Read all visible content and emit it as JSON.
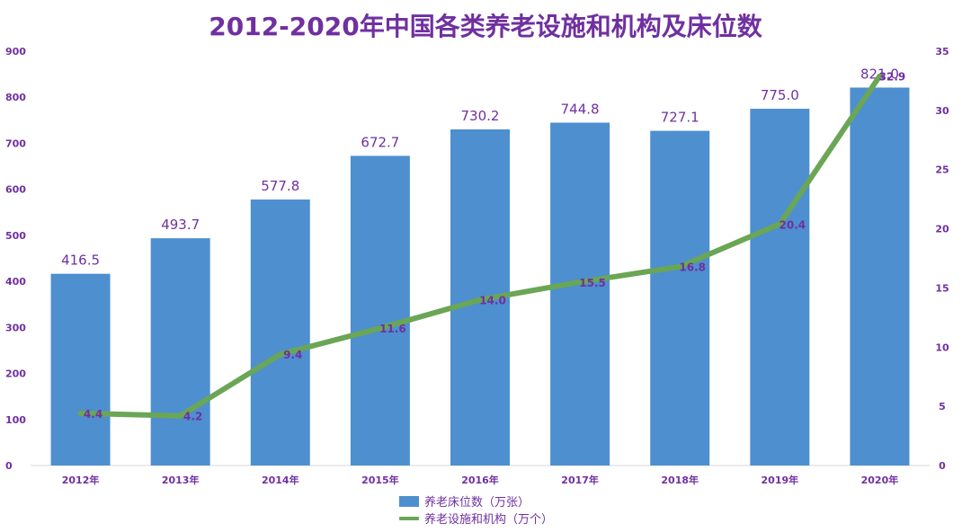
{
  "title": "2012-2020年中国各类养老设施和机构及床位数",
  "colors": {
    "title": "#7030A0",
    "bar": "#4E8FCF",
    "line": "#6AA655",
    "axis_text": "#7030A0",
    "bar_label": "#7030A0",
    "line_label": "#7030A0",
    "axis_line": "#D9D9D9"
  },
  "legend": {
    "bar_label": "养老床位数（万张）",
    "line_label": "养老设施和机构（万个）"
  },
  "chart_data": {
    "type": "bar",
    "categories": [
      "2012年",
      "2013年",
      "2014年",
      "2015年",
      "2016年",
      "2017年",
      "2018年",
      "2019年",
      "2020年"
    ],
    "series": [
      {
        "name": "养老床位数（万张）",
        "type": "bar",
        "axis": "left",
        "values": [
          416.5,
          493.7,
          577.8,
          672.7,
          730.2,
          744.8,
          727.1,
          775.0,
          821.0
        ],
        "labels": [
          "416.5",
          "493.7",
          "577.8",
          "672.7",
          "730.2",
          "744.8",
          "727.1",
          "775.0",
          "821.0"
        ]
      },
      {
        "name": "养老设施和机构（万个）",
        "type": "line",
        "axis": "right",
        "values": [
          4.4,
          4.2,
          9.4,
          11.6,
          14.0,
          15.5,
          16.8,
          20.4,
          32.9
        ],
        "labels": [
          "4.4",
          "4.2",
          "9.4",
          "11.6",
          "14.0",
          "15.5",
          "16.8",
          "20.4",
          "32.9"
        ]
      }
    ],
    "left_axis": {
      "ylim": [
        0,
        900
      ],
      "ticks": [
        "0",
        "100",
        "200",
        "300",
        "400",
        "500",
        "600",
        "700",
        "800",
        "900"
      ],
      "tick_values": [
        0,
        100,
        200,
        300,
        400,
        500,
        600,
        700,
        800,
        900
      ]
    },
    "right_axis": {
      "ylim": [
        0,
        35
      ],
      "ticks": [
        "0",
        "5",
        "10",
        "15",
        "20",
        "25",
        "30",
        "35"
      ],
      "tick_values": [
        0,
        5,
        10,
        15,
        20,
        25,
        30,
        35
      ]
    },
    "grid": false,
    "legend_position": "bottom"
  }
}
